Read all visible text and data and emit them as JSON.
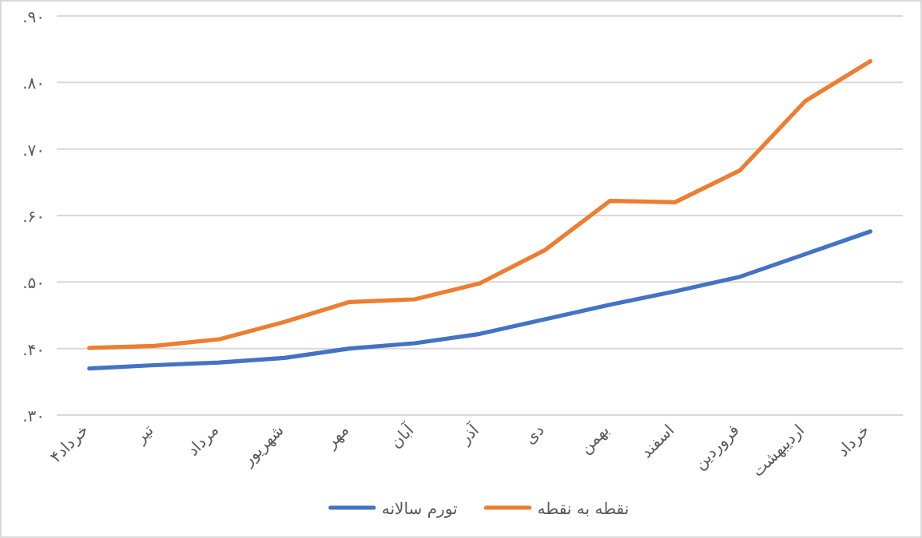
{
  "chart_data": {
    "type": "line",
    "categories": [
      "خرداد۴",
      "تیر",
      "مرداد",
      "شهریور",
      "مهر",
      "آبان",
      "آذر",
      "دی",
      "بهمن",
      "اسفند",
      "فروردین",
      "اردیبهشت",
      "خرداد"
    ],
    "series": [
      {
        "name": "تورم سالانه",
        "color": "#4472c4",
        "values": [
          0.37,
          0.375,
          0.379,
          0.386,
          0.4,
          0.408,
          0.422,
          0.444,
          0.466,
          0.486,
          0.508,
          0.542,
          0.576
        ]
      },
      {
        "name": "نقطه به نقطه",
        "color": "#ed7d31",
        "values": [
          0.401,
          0.404,
          0.414,
          0.44,
          0.47,
          0.474,
          0.498,
          0.548,
          0.622,
          0.62,
          0.668,
          0.772,
          0.832
        ]
      }
    ],
    "ylim": [
      0.3,
      0.9
    ],
    "yticks": [
      {
        "value": 0.3,
        "label": ".۳۰"
      },
      {
        "value": 0.4,
        "label": ".۴۰"
      },
      {
        "value": 0.5,
        "label": ".۵۰"
      },
      {
        "value": 0.6,
        "label": ".۶۰"
      },
      {
        "value": 0.7,
        "label": ".۷۰"
      },
      {
        "value": 0.8,
        "label": ".۸۰"
      },
      {
        "value": 0.9,
        "label": ".۹۰"
      }
    ],
    "grid": "y",
    "legend": "bottom",
    "marker": "none",
    "line_style": "solid"
  }
}
